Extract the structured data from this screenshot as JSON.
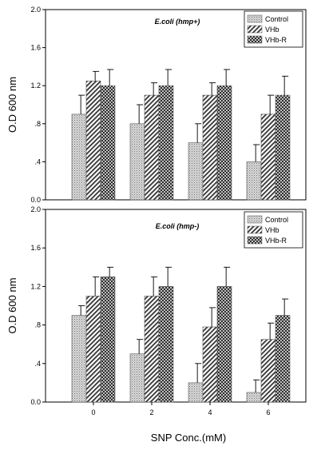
{
  "chart_data": [
    {
      "type": "bar",
      "title": "E.coli (hmp+)",
      "ylabel": "O.D 600 nm",
      "xlabel": "",
      "ylim": [
        0,
        2.0
      ],
      "yticks": [
        "0.0",
        ".4",
        ".8",
        "1.2",
        "1.6",
        "2.0"
      ],
      "categories": [
        "0",
        "2",
        "4",
        "6"
      ],
      "category_labels_shown": false,
      "legend_position": "top-right",
      "series": [
        {
          "name": "Control",
          "values": [
            0.9,
            0.8,
            0.6,
            0.4
          ],
          "errors": [
            0.2,
            0.2,
            0.2,
            0.18
          ],
          "pattern": "dots"
        },
        {
          "name": "VHb",
          "values": [
            1.25,
            1.1,
            1.1,
            0.9
          ],
          "errors": [
            0.1,
            0.13,
            0.13,
            0.2
          ],
          "pattern": "hatch"
        },
        {
          "name": "VHb-R",
          "values": [
            1.2,
            1.2,
            1.2,
            1.1
          ],
          "errors": [
            0.17,
            0.17,
            0.17,
            0.2
          ],
          "pattern": "cross"
        }
      ]
    },
    {
      "type": "bar",
      "title": "E.coli (hmp-)",
      "ylabel": "O.D 600 nm",
      "xlabel": "SNP Conc.(mM)",
      "ylim": [
        0,
        2.0
      ],
      "yticks": [
        "0.0",
        ".4",
        ".8",
        "1.2",
        "1.6",
        "2.0"
      ],
      "categories": [
        "0",
        "2",
        "4",
        "6"
      ],
      "category_labels_shown": true,
      "legend_position": "top-right",
      "series": [
        {
          "name": "Control",
          "values": [
            0.9,
            0.5,
            0.2,
            0.1
          ],
          "errors": [
            0.1,
            0.15,
            0.2,
            0.13
          ],
          "pattern": "dots"
        },
        {
          "name": "VHb",
          "values": [
            1.1,
            1.1,
            0.78,
            0.65
          ],
          "errors": [
            0.2,
            0.2,
            0.2,
            0.17
          ],
          "pattern": "hatch"
        },
        {
          "name": "VHb-R",
          "values": [
            1.3,
            1.2,
            1.2,
            0.9
          ],
          "errors": [
            0.1,
            0.2,
            0.2,
            0.17
          ],
          "pattern": "cross"
        }
      ]
    }
  ]
}
